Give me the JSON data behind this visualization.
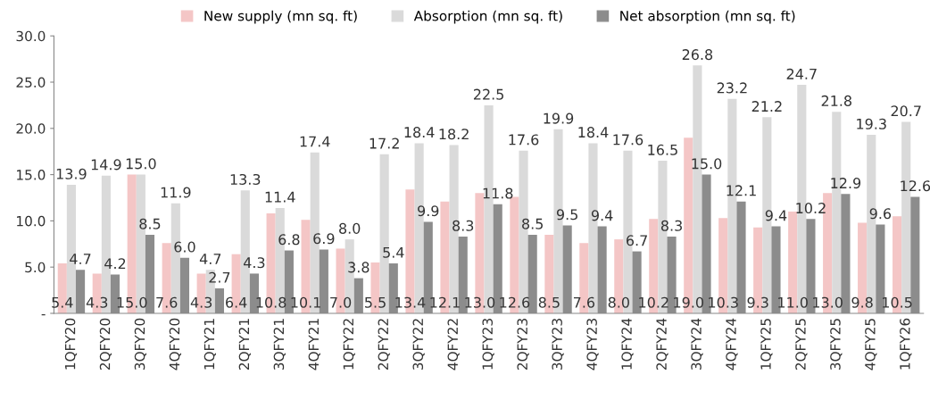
{
  "chart_data": {
    "type": "bar",
    "categories": [
      "1QFY20",
      "2QFY20",
      "3QFY20",
      "4QFY20",
      "1QFY21",
      "2QFY21",
      "3QFY21",
      "4QFY21",
      "1QFY22",
      "2QFY22",
      "3QFY22",
      "4QFY22",
      "1QFY23",
      "2QFY23",
      "3QFY23",
      "4QFY23",
      "1QFY24",
      "2QFY24",
      "3QFY24",
      "4QFY24",
      "1QFY25",
      "2QFY25",
      "3QFY25",
      "4QFY25",
      "1QFY26"
    ],
    "series": [
      {
        "name": "New supply (mn sq. ft)",
        "color": "#f4c6c6",
        "values": [
          5.4,
          4.3,
          15.0,
          7.6,
          4.3,
          6.4,
          10.8,
          10.1,
          7.0,
          5.5,
          13.4,
          12.1,
          13.0,
          12.6,
          8.5,
          7.6,
          8.0,
          10.2,
          19.0,
          10.3,
          9.3,
          11.0,
          13.0,
          9.8,
          10.5
        ],
        "value_labels": [
          "5.4",
          "4.3",
          "15.0",
          "7.6",
          "4.3",
          "6.4",
          "10.8",
          "10.1",
          "7.0",
          "5.5",
          "13.4",
          "12.1",
          "13.0",
          "12.6",
          "8.5",
          "7.6",
          "8.0",
          "10.2",
          "19.0",
          "10.3",
          "9.3",
          "11.0",
          "13.0",
          "9.8",
          "10.5"
        ]
      },
      {
        "name": "Absorption (mn sq. ft)",
        "color": "#dadada",
        "values": [
          13.9,
          14.9,
          15.0,
          11.9,
          4.7,
          13.3,
          11.4,
          17.4,
          8.0,
          17.2,
          18.4,
          18.2,
          22.5,
          17.6,
          19.9,
          18.4,
          17.6,
          16.5,
          26.8,
          23.2,
          21.2,
          24.7,
          21.8,
          19.3,
          20.7
        ],
        "value_labels": [
          "13.9",
          "14.9",
          "15.0",
          "11.9",
          "4.7",
          "13.3",
          "11.4",
          "17.4",
          "8.0",
          "17.2",
          "18.4",
          "18.2",
          "22.5",
          "17.6",
          "19.9",
          "18.4",
          "17.6",
          "16.5",
          "26.8",
          "23.2",
          "21.2",
          "24.7",
          "21.8",
          "19.3",
          "20.7"
        ]
      },
      {
        "name": "Net absorption (mn sq. ft)",
        "color": "#8c8c8c",
        "values": [
          4.7,
          4.2,
          8.5,
          6.0,
          2.7,
          4.3,
          6.8,
          6.9,
          3.8,
          5.4,
          9.9,
          8.3,
          11.8,
          8.5,
          9.5,
          9.4,
          6.7,
          8.3,
          15.0,
          12.1,
          9.4,
          10.2,
          12.9,
          9.6,
          12.6
        ],
        "value_labels": [
          "4.7",
          "4.2",
          "8.5",
          "6.0",
          "2.7",
          "4.3",
          "6.8",
          "6.9",
          "3.8",
          "5.4",
          "9.9",
          "8.3",
          "11.8",
          "8.5",
          "9.5",
          "9.4",
          "6.7",
          "8.3",
          "15.0",
          "12.1",
          "9.4",
          "10.2",
          "12.9",
          "9.6",
          "12.6"
        ]
      }
    ],
    "ylim": [
      0,
      30
    ],
    "yticks": [
      {
        "value": 0,
        "label": "-"
      },
      {
        "value": 5,
        "label": "5.0"
      },
      {
        "value": 10,
        "label": "10.0"
      },
      {
        "value": 15,
        "label": "15.0"
      },
      {
        "value": 20,
        "label": "20.0"
      },
      {
        "value": 25,
        "label": "25.0"
      },
      {
        "value": 30,
        "label": "30.0"
      }
    ],
    "grid": false,
    "legend": "top"
  }
}
